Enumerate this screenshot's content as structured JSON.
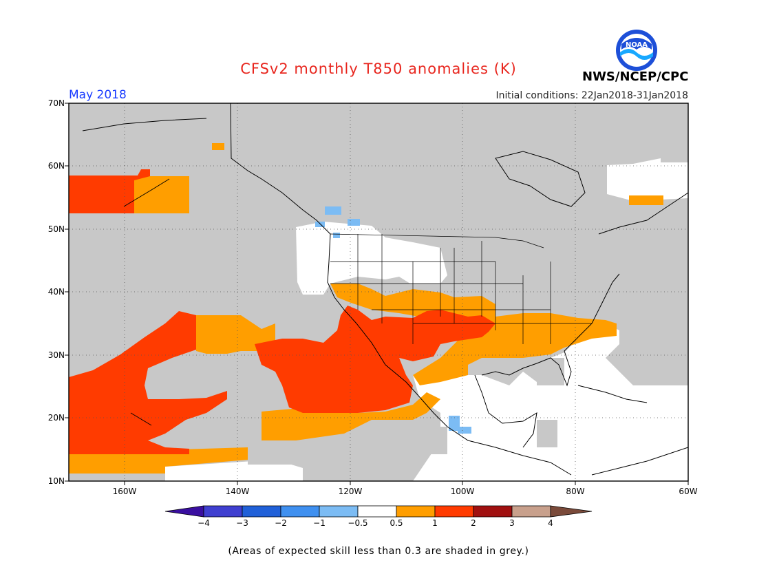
{
  "title": "CFSv2 monthly T850 anomalies (K)",
  "valid_month": "May 2018",
  "initial_conditions": "Initial conditions: 22Jan2018-31Jan2018",
  "organization": "NWS/NCEP/CPC",
  "logo_text": "NOAA",
  "footnote": "(Areas of expected skill less than 0.3 are shaded in grey.)",
  "map": {
    "lat_labels": [
      "70N",
      "60N",
      "50N",
      "40N",
      "30N",
      "20N",
      "10N"
    ],
    "lon_labels": [
      "160W",
      "140W",
      "120W",
      "100W",
      "80W",
      "60W"
    ],
    "lat_range": [
      10,
      70
    ],
    "lon_range": [
      -171,
      -60
    ]
  },
  "colorbar": {
    "labels": [
      "−4",
      "−3",
      "−2",
      "−1",
      "−0.5",
      "0.5",
      "1",
      "2",
      "3",
      "4"
    ],
    "colors": [
      "#3a0fa0",
      "#3f3fd0",
      "#2060d8",
      "#3f90f0",
      "#7cbcf4",
      "#ffffff",
      "#ff9e00",
      "#ff3b00",
      "#a01010",
      "#c8a08c",
      "#7a4a3a"
    ]
  },
  "colors": {
    "skill_grey": "#c8c8c8",
    "anom_0_5_1": "#ff9e00",
    "anom_1_2": "#ff3b00",
    "anom_neg": "#7cbcf4",
    "title_red": "#e8261e",
    "month_blue": "#1a3cff"
  }
}
